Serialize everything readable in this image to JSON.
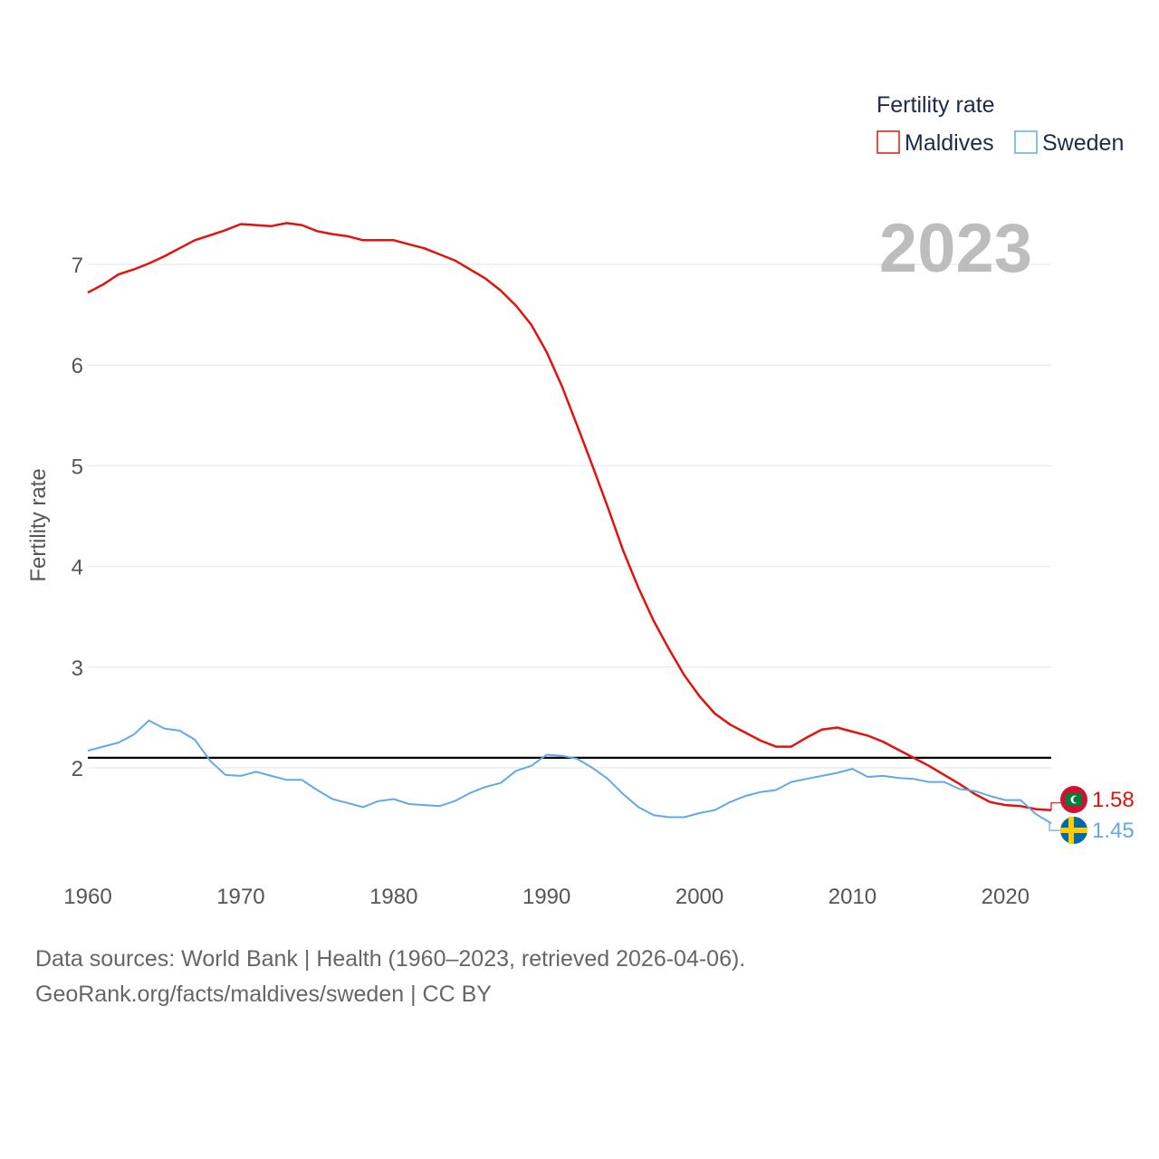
{
  "chart_data": {
    "type": "line",
    "title": "Fertility rate",
    "year_display": "2023",
    "ylabel": "Fertility rate",
    "xlabel": "",
    "xlim": [
      1960,
      2023
    ],
    "ylim": [
      1.0,
      7.9
    ],
    "x_ticks": [
      1960,
      1970,
      1980,
      1990,
      2000,
      2010,
      2020
    ],
    "y_ticks": [
      2,
      3,
      4,
      5,
      6,
      7
    ],
    "reference_line": 2.1,
    "x": [
      1960,
      1961,
      1962,
      1963,
      1964,
      1965,
      1966,
      1967,
      1968,
      1969,
      1970,
      1971,
      1972,
      1973,
      1974,
      1975,
      1976,
      1977,
      1978,
      1979,
      1980,
      1981,
      1982,
      1983,
      1984,
      1985,
      1986,
      1987,
      1988,
      1989,
      1990,
      1991,
      1992,
      1993,
      1994,
      1995,
      1996,
      1997,
      1998,
      1999,
      2000,
      2001,
      2002,
      2003,
      2004,
      2005,
      2006,
      2007,
      2008,
      2009,
      2010,
      2011,
      2012,
      2013,
      2014,
      2015,
      2016,
      2017,
      2018,
      2019,
      2020,
      2021,
      2022,
      2023
    ],
    "series": [
      {
        "name": "Maldives",
        "color": "#e3120b",
        "end_label": "1.58",
        "values": [
          6.72,
          6.8,
          6.9,
          6.95,
          7.01,
          7.08,
          7.16,
          7.24,
          7.29,
          7.34,
          7.4,
          7.39,
          7.38,
          7.41,
          7.39,
          7.33,
          7.3,
          7.28,
          7.24,
          7.24,
          7.24,
          7.2,
          7.16,
          7.1,
          7.04,
          6.95,
          6.86,
          6.74,
          6.59,
          6.4,
          6.13,
          5.79,
          5.4,
          5.0,
          4.59,
          4.16,
          3.79,
          3.46,
          3.18,
          2.92,
          2.71,
          2.54,
          2.43,
          2.35,
          2.27,
          2.21,
          2.21,
          2.3,
          2.38,
          2.4,
          2.36,
          2.32,
          2.26,
          2.18,
          2.1,
          2.02,
          1.93,
          1.84,
          1.74,
          1.66,
          1.63,
          1.62,
          1.59,
          1.58
        ]
      },
      {
        "name": "Sweden",
        "color": "#62a9e8",
        "end_label": "1.45",
        "values": [
          2.17,
          2.21,
          2.25,
          2.33,
          2.47,
          2.39,
          2.37,
          2.28,
          2.07,
          1.93,
          1.92,
          1.96,
          1.92,
          1.88,
          1.88,
          1.78,
          1.69,
          1.65,
          1.61,
          1.67,
          1.69,
          1.64,
          1.63,
          1.62,
          1.67,
          1.75,
          1.81,
          1.85,
          1.97,
          2.02,
          2.13,
          2.12,
          2.09,
          2.0,
          1.89,
          1.74,
          1.61,
          1.53,
          1.51,
          1.51,
          1.55,
          1.58,
          1.66,
          1.72,
          1.76,
          1.78,
          1.86,
          1.89,
          1.92,
          1.95,
          1.99,
          1.91,
          1.92,
          1.9,
          1.89,
          1.86,
          1.86,
          1.79,
          1.77,
          1.72,
          1.68,
          1.68,
          1.54,
          1.45
        ]
      }
    ],
    "legend": {
      "title": "Fertility rate",
      "position": "top-right"
    }
  },
  "footer": {
    "line1": "Data sources: World Bank | Health (1960–2023, retrieved 2026-04-06).",
    "line2": "GeoRank.org/facts/maldives/sweden | CC BY"
  },
  "icons": {
    "maldives_flag": "maldives-flag-icon",
    "sweden_flag": "sweden-flag-icon"
  },
  "colors": {
    "grid": "#e6e6e6",
    "reference": "#000000",
    "axis_text": "#555555",
    "legend_text": "#1d2b4a",
    "year_text": "#bdbdbd"
  }
}
